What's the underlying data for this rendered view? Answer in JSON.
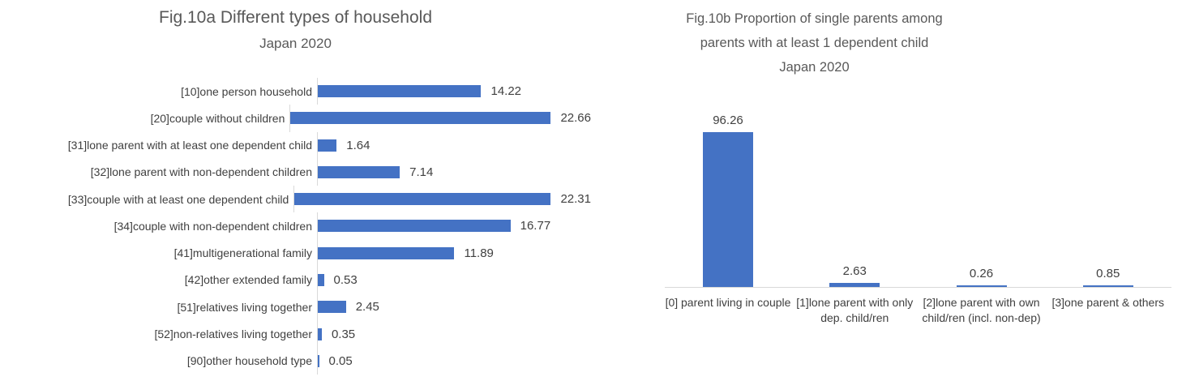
{
  "figure": {
    "background": "#ffffff"
  },
  "colors": {
    "bar": "#4472C4",
    "axis_line": "#D9D9D9",
    "title_text": "#595959",
    "label_text": "#404040"
  },
  "chart_data": [
    {
      "type": "bar",
      "orientation": "horizontal",
      "title": "Fig.10a Different types of household",
      "subtitle": "Japan 2020",
      "categories": [
        "[10]one person household",
        "[20]couple without children",
        "[31]lone parent with at least one dependent child",
        "[32]lone parent with non-dependent children",
        "[33]couple with at least one dependent child",
        "[34]couple with non-dependent children",
        "[41]multigenerational family",
        "[42]other extended family",
        "[51]relatives living together",
        "[52]non-relatives living together",
        "[90]other household type"
      ],
      "values": [
        14.22,
        22.66,
        1.64,
        7.14,
        22.31,
        16.77,
        11.89,
        0.53,
        2.45,
        0.35,
        0.05
      ],
      "value_labels": [
        "14.22",
        "22.66",
        "1.64",
        "7.14",
        "22.31",
        "16.77",
        "11.89",
        "0.53",
        "2.45",
        "0.35",
        "0.05"
      ],
      "xlim": [
        0,
        23
      ],
      "grid": false,
      "legend": false
    },
    {
      "type": "bar",
      "orientation": "vertical",
      "title": "Fig.10b Proportion of single parents among parents with at least 1 dependent child Japan 2020",
      "title_lines": [
        "Fig.10b Proportion of single parents among",
        "parents with at least 1 dependent child",
        "Japan 2020"
      ],
      "categories": [
        "[0] parent living in couple",
        "[1]lone parent with only dep. child/ren",
        "[2]lone parent with own child/ren (incl. non-dep)",
        "[3]one parent & others"
      ],
      "values": [
        96.26,
        2.63,
        0.26,
        0.85
      ],
      "value_labels": [
        "96.26",
        "2.63",
        "0.26",
        "0.85"
      ],
      "ylim": [
        0,
        100
      ],
      "grid": false,
      "legend": false
    }
  ]
}
